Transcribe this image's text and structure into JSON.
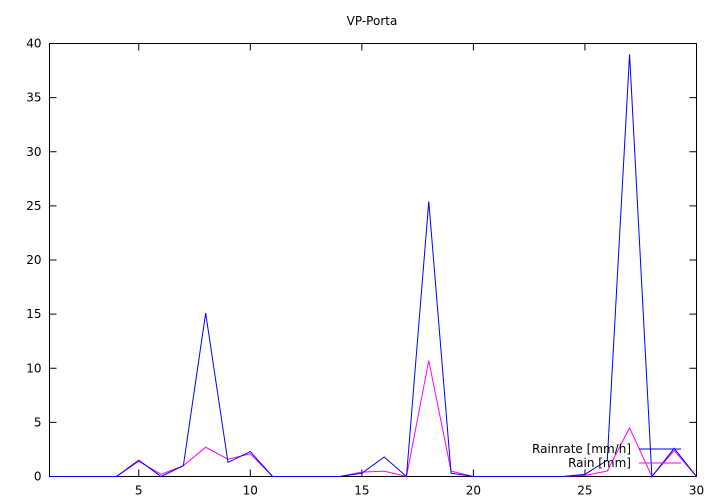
{
  "chart_data": {
    "type": "line",
    "title": "VP-Porta",
    "xlabel": "",
    "ylabel": "",
    "xlim": [
      1,
      30
    ],
    "ylim": [
      0,
      40
    ],
    "xticks": [
      5,
      10,
      15,
      20,
      25,
      30
    ],
    "yticks": [
      0,
      5,
      10,
      15,
      20,
      25,
      30,
      35,
      40
    ],
    "grid": false,
    "legend_position": "bottom-right",
    "x": [
      1,
      2,
      3,
      4,
      5,
      6,
      7,
      8,
      9,
      10,
      11,
      12,
      13,
      14,
      15,
      16,
      17,
      18,
      19,
      20,
      21,
      22,
      23,
      24,
      25,
      26,
      27,
      28,
      29,
      30
    ],
    "series": [
      {
        "name": "Rainrate [mm/h]",
        "color": "#0000ff",
        "values": [
          0,
          0,
          0,
          0,
          1.5,
          0,
          1.0,
          15.1,
          1.3,
          2.3,
          0,
          0,
          0,
          0,
          0.3,
          1.8,
          0,
          25.4,
          0.3,
          0,
          0,
          0,
          0,
          0,
          0.2,
          1.5,
          39.0,
          0,
          2.6,
          0
        ]
      },
      {
        "name": "Rain [mm]",
        "color": "#ff00ff",
        "values": [
          0,
          0,
          0,
          0,
          1.4,
          0.2,
          1.0,
          2.7,
          1.6,
          2.1,
          0,
          0,
          0,
          0,
          0.4,
          0.5,
          0,
          10.7,
          0.5,
          0,
          0,
          0,
          0,
          0,
          0.1,
          0.5,
          4.5,
          0,
          2.4,
          0
        ]
      }
    ]
  }
}
